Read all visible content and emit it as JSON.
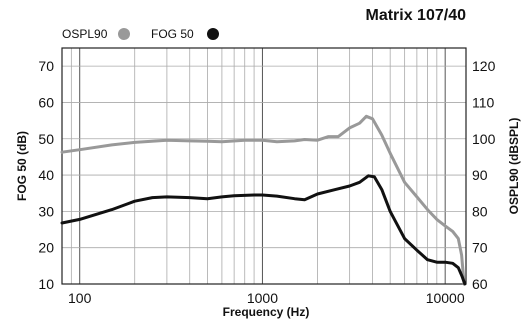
{
  "chart_data": {
    "type": "line",
    "title": "Matrix 107/40",
    "xlabel": "Frequency (Hz)",
    "ylabel_left": "FOG 50 (dB)",
    "ylabel_right": "OSPL90 (dBSPL)",
    "x_scale": "log",
    "xlim": [
      80,
      13000
    ],
    "ylim_left": [
      10,
      75
    ],
    "ylim_right": [
      60,
      125
    ],
    "x_ticks": [
      {
        "value": 100,
        "label": "100"
      },
      {
        "value": 1000,
        "label": "1000"
      },
      {
        "value": 10000,
        "label": "10000"
      }
    ],
    "y_ticks_left": [
      {
        "value": 10,
        "label": "10"
      },
      {
        "value": 20,
        "label": "20"
      },
      {
        "value": 30,
        "label": "30"
      },
      {
        "value": 40,
        "label": "40"
      },
      {
        "value": 50,
        "label": "50"
      },
      {
        "value": 60,
        "label": "60"
      },
      {
        "value": 70,
        "label": "70"
      }
    ],
    "y_ticks_right": [
      {
        "value": 60,
        "label": "60"
      },
      {
        "value": 70,
        "label": "70"
      },
      {
        "value": 80,
        "label": "80"
      },
      {
        "value": 90,
        "label": "90"
      },
      {
        "value": 100,
        "label": "100"
      },
      {
        "value": 110,
        "label": "110"
      },
      {
        "value": 120,
        "label": "120"
      }
    ],
    "grid": true,
    "legend_position": "top-left",
    "series": [
      {
        "name": "OSPL90",
        "axis": "right",
        "color": "#999999",
        "points": [
          [
            80,
            96.3
          ],
          [
            100,
            97.0
          ],
          [
            150,
            98.3
          ],
          [
            200,
            99.0
          ],
          [
            300,
            99.6
          ],
          [
            400,
            99.4
          ],
          [
            500,
            99.3
          ],
          [
            600,
            99.2
          ],
          [
            800,
            99.6
          ],
          [
            1000,
            99.6
          ],
          [
            1200,
            99.2
          ],
          [
            1500,
            99.4
          ],
          [
            1700,
            99.8
          ],
          [
            2000,
            99.6
          ],
          [
            2300,
            100.6
          ],
          [
            2600,
            100.6
          ],
          [
            3000,
            103.0
          ],
          [
            3400,
            104.3
          ],
          [
            3700,
            106.2
          ],
          [
            4000,
            105.5
          ],
          [
            4500,
            101.0
          ],
          [
            5000,
            96.0
          ],
          [
            6000,
            88.0
          ],
          [
            7000,
            84.0
          ],
          [
            8000,
            80.5
          ],
          [
            9000,
            77.8
          ],
          [
            10000,
            76.0
          ],
          [
            11000,
            74.5
          ],
          [
            11800,
            72.5
          ],
          [
            12300,
            68.0
          ],
          [
            12700,
            60.0
          ]
        ]
      },
      {
        "name": "FOG 50",
        "axis": "left",
        "color": "#111111",
        "points": [
          [
            80,
            26.8
          ],
          [
            100,
            27.8
          ],
          [
            150,
            30.5
          ],
          [
            200,
            32.8
          ],
          [
            250,
            33.8
          ],
          [
            300,
            34.0
          ],
          [
            400,
            33.8
          ],
          [
            500,
            33.5
          ],
          [
            600,
            34.0
          ],
          [
            700,
            34.3
          ],
          [
            900,
            34.5
          ],
          [
            1000,
            34.5
          ],
          [
            1200,
            34.2
          ],
          [
            1500,
            33.5
          ],
          [
            1700,
            33.2
          ],
          [
            2000,
            34.8
          ],
          [
            2500,
            36.0
          ],
          [
            3000,
            37.0
          ],
          [
            3400,
            38.0
          ],
          [
            3800,
            39.8
          ],
          [
            4100,
            39.5
          ],
          [
            4500,
            36.0
          ],
          [
            5000,
            30.0
          ],
          [
            6000,
            22.5
          ],
          [
            7000,
            19.3
          ],
          [
            8000,
            16.7
          ],
          [
            9000,
            16.0
          ],
          [
            10000,
            16.0
          ],
          [
            11000,
            15.7
          ],
          [
            11800,
            14.5
          ],
          [
            12400,
            12.0
          ],
          [
            12800,
            10.0
          ]
        ]
      }
    ]
  }
}
